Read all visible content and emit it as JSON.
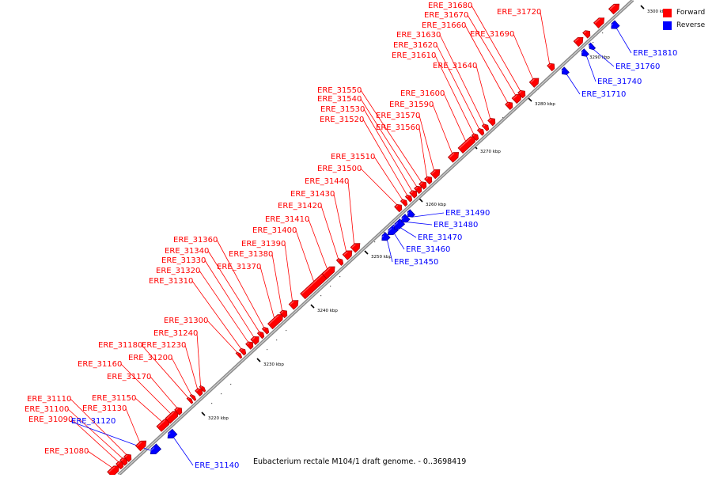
{
  "title": "Eubacterium rectale M104/1 draft genome. - 0..3698419",
  "legend": [
    {
      "label": "Forward",
      "color": "#ff0000"
    },
    {
      "label": "Reverse",
      "color": "#0000ff"
    }
  ],
  "scale_ticks": [
    {
      "label": "3220 kbp",
      "kbp": 3220
    },
    {
      "label": "3230 kbp",
      "kbp": 3230
    },
    {
      "label": "3240 kbp",
      "kbp": 3240
    },
    {
      "label": "3250 kbp",
      "kbp": 3250
    },
    {
      "label": "3260 kbp",
      "kbp": 3260
    },
    {
      "label": "3270 kbp",
      "kbp": 3270
    },
    {
      "label": "3280 kbp",
      "kbp": 3280
    },
    {
      "label": "3290 kbp",
      "kbp": 3290
    },
    {
      "label": "3300 kbp",
      "kbp": 3300
    }
  ],
  "genes": [
    {
      "id": "ERE_31080",
      "strand": "forward"
    },
    {
      "id": "ERE_31090",
      "strand": "forward"
    },
    {
      "id": "ERE_31100",
      "strand": "forward"
    },
    {
      "id": "ERE_31110",
      "strand": "forward"
    },
    {
      "id": "ERE_31120",
      "strand": "reverse"
    },
    {
      "id": "ERE_31130",
      "strand": "forward"
    },
    {
      "id": "ERE_31140",
      "strand": "reverse"
    },
    {
      "id": "ERE_31150",
      "strand": "forward"
    },
    {
      "id": "ERE_31160",
      "strand": "forward"
    },
    {
      "id": "ERE_31170",
      "strand": "forward"
    },
    {
      "id": "ERE_31180",
      "strand": "forward"
    },
    {
      "id": "ERE_31200",
      "strand": "forward"
    },
    {
      "id": "ERE_31230",
      "strand": "forward"
    },
    {
      "id": "ERE_31240",
      "strand": "forward"
    },
    {
      "id": "ERE_31300",
      "strand": "forward"
    },
    {
      "id": "ERE_31310",
      "strand": "forward"
    },
    {
      "id": "ERE_31320",
      "strand": "forward"
    },
    {
      "id": "ERE_31330",
      "strand": "forward"
    },
    {
      "id": "ERE_31340",
      "strand": "forward"
    },
    {
      "id": "ERE_31360",
      "strand": "forward"
    },
    {
      "id": "ERE_31370",
      "strand": "forward"
    },
    {
      "id": "ERE_31380",
      "strand": "forward"
    },
    {
      "id": "ERE_31390",
      "strand": "forward"
    },
    {
      "id": "ERE_31400",
      "strand": "forward"
    },
    {
      "id": "ERE_31410",
      "strand": "forward"
    },
    {
      "id": "ERE_31420",
      "strand": "forward"
    },
    {
      "id": "ERE_31430",
      "strand": "forward"
    },
    {
      "id": "ERE_31440",
      "strand": "forward"
    },
    {
      "id": "ERE_31450",
      "strand": "reverse"
    },
    {
      "id": "ERE_31460",
      "strand": "reverse"
    },
    {
      "id": "ERE_31470",
      "strand": "reverse"
    },
    {
      "id": "ERE_31480",
      "strand": "reverse"
    },
    {
      "id": "ERE_31490",
      "strand": "reverse"
    },
    {
      "id": "ERE_31500",
      "strand": "forward"
    },
    {
      "id": "ERE_31510",
      "strand": "forward"
    },
    {
      "id": "ERE_31520",
      "strand": "forward"
    },
    {
      "id": "ERE_31530",
      "strand": "forward"
    },
    {
      "id": "ERE_31540",
      "strand": "forward"
    },
    {
      "id": "ERE_31550",
      "strand": "forward"
    },
    {
      "id": "ERE_31560",
      "strand": "forward"
    },
    {
      "id": "ERE_31570",
      "strand": "forward"
    },
    {
      "id": "ERE_31590",
      "strand": "forward"
    },
    {
      "id": "ERE_31600",
      "strand": "forward"
    },
    {
      "id": "ERE_31610",
      "strand": "forward"
    },
    {
      "id": "ERE_31620",
      "strand": "forward"
    },
    {
      "id": "ERE_31630",
      "strand": "forward"
    },
    {
      "id": "ERE_31640",
      "strand": "forward"
    },
    {
      "id": "ERE_31660",
      "strand": "forward"
    },
    {
      "id": "ERE_31670",
      "strand": "forward"
    },
    {
      "id": "ERE_31680",
      "strand": "forward"
    },
    {
      "id": "ERE_31690",
      "strand": "forward"
    },
    {
      "id": "ERE_31710",
      "strand": "reverse"
    },
    {
      "id": "ERE_31720",
      "strand": "forward"
    },
    {
      "id": "ERE_31740",
      "strand": "reverse"
    },
    {
      "id": "ERE_31760",
      "strand": "reverse"
    },
    {
      "id": "ERE_31810",
      "strand": "reverse"
    }
  ]
}
